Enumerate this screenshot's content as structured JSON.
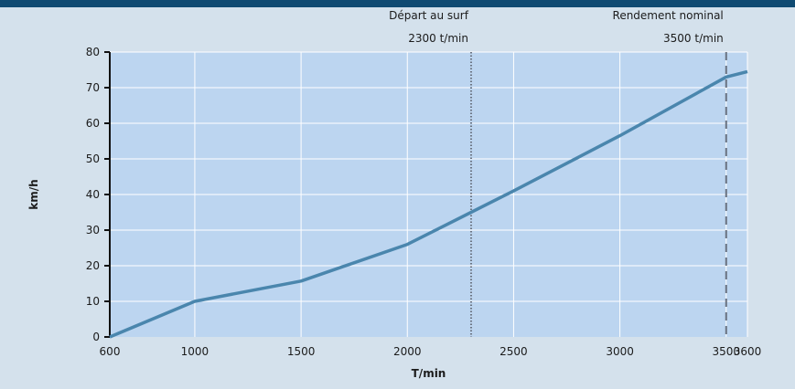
{
  "chart_data": {
    "type": "line",
    "xlabel": "T/min",
    "ylabel": "km/h",
    "x_ticks": [
      600,
      1000,
      1500,
      2000,
      2500,
      3000,
      3500,
      3600
    ],
    "y_ticks": [
      0,
      10,
      20,
      30,
      40,
      50,
      60,
      70,
      80
    ],
    "xlim": [
      600,
      3600
    ],
    "ylim": [
      0,
      80
    ],
    "grid": true,
    "series": [
      {
        "x": [
          600,
          1000,
          1500,
          2000,
          2500,
          3000,
          3500,
          3600
        ],
        "y": [
          0,
          10,
          15.7,
          26,
          41,
          56.5,
          73,
          74.5
        ]
      }
    ],
    "annotations": [
      {
        "x": 2300,
        "style": "dotted",
        "line1": "Départ au surf",
        "line2": "2300 t/min"
      },
      {
        "x": 3500,
        "style": "dashed",
        "line1": "Rendement nominal",
        "line2": "3500 t/min"
      }
    ]
  },
  "colors": {
    "background": "#d4e1ec",
    "plot_area": "#bcd5f0",
    "line": "#4a86ad",
    "top_bar": "#0f4a72",
    "marker_line": "#6a7280"
  }
}
